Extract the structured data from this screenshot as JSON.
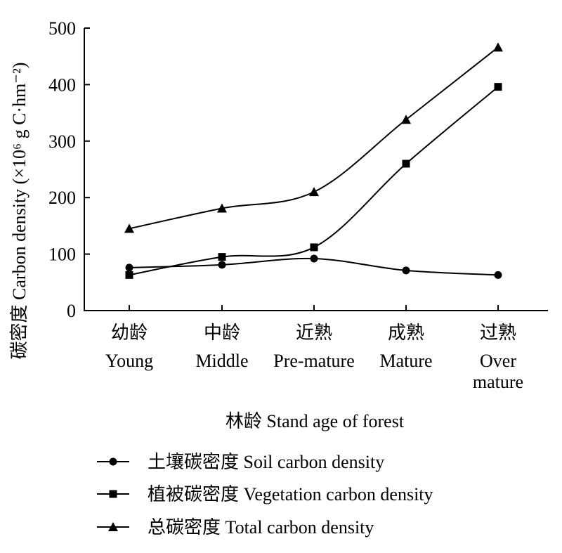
{
  "chart_data": {
    "type": "line",
    "title": "",
    "xlabel": "林龄 Stand age of forest",
    "ylabel": "碳密度 Carbon density (×10⁶ g C·hm⁻²)",
    "categories": [
      {
        "zh": "幼龄",
        "en": [
          "Young"
        ]
      },
      {
        "zh": "中龄",
        "en": [
          "Middle"
        ]
      },
      {
        "zh": "近熟",
        "en": [
          "Pre-mature"
        ]
      },
      {
        "zh": "成熟",
        "en": [
          "Mature"
        ]
      },
      {
        "zh": "过熟",
        "en": [
          "Over",
          "mature"
        ]
      }
    ],
    "ylim": [
      0,
      500
    ],
    "yticks": [
      0,
      100,
      200,
      300,
      400,
      500
    ],
    "grid": false,
    "legend_position": "bottom",
    "series": [
      {
        "name": "土壤碳密度 Soil carbon density",
        "marker": "circle",
        "values": [
          76,
          81,
          92,
          71,
          63
        ]
      },
      {
        "name": "植被碳密度 Vegetation carbon density",
        "marker": "square",
        "values": [
          63,
          95,
          112,
          260,
          396
        ]
      },
      {
        "name": "总碳密度 Total carbon density",
        "marker": "triangle",
        "values": [
          145,
          181,
          210,
          338,
          466
        ]
      }
    ],
    "color": "#000000"
  }
}
